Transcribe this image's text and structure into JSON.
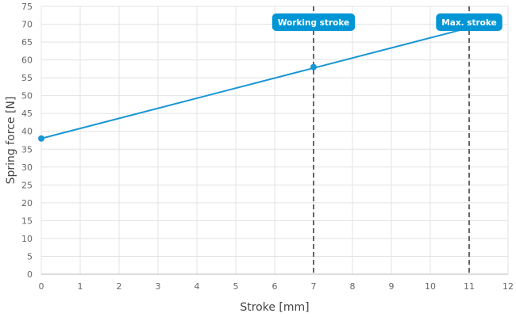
{
  "chart_data": {
    "type": "line",
    "xlabel": "Stroke [mm]",
    "ylabel": "Spring force [N]",
    "xlim": [
      0,
      12
    ],
    "ylim": [
      0,
      75
    ],
    "x_ticks": [
      0,
      1,
      2,
      3,
      4,
      5,
      6,
      7,
      8,
      9,
      10,
      11,
      12
    ],
    "y_ticks": [
      0,
      5,
      10,
      15,
      20,
      25,
      30,
      35,
      40,
      45,
      50,
      55,
      60,
      65,
      70,
      75
    ],
    "grid": true,
    "series": [
      {
        "x": [
          0,
          11
        ],
        "y": [
          38,
          69
        ],
        "markers": [
          [
            0,
            38
          ],
          [
            7,
            58
          ]
        ]
      }
    ],
    "reference_lines": [
      {
        "x": 7,
        "label": "Working stroke"
      },
      {
        "x": 11,
        "label": "Max. stroke"
      }
    ],
    "colors": {
      "line": "#1a96d4",
      "callout": "#0096d6",
      "grid": "#e3e3e3",
      "reference": "#333333"
    }
  }
}
